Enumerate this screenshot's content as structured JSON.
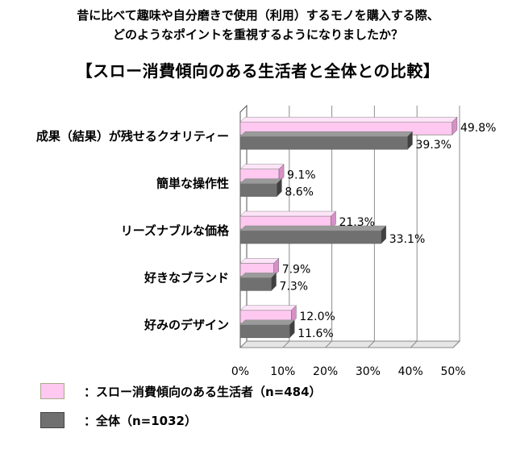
{
  "question": {
    "line1": "昔に比べて趣味や自分磨きで使用（利用）するモノを購入する際、",
    "line2": "どのようなポイントを重視するようになりましたか？"
  },
  "subtitle": "【スロー消費傾向のある生活者と全体との比較】",
  "colors": {
    "slow": "#ffc8f0",
    "slow_top": "#ffe4f8",
    "slow_side": "#d890c8",
    "all": "#707070",
    "all_top": "#9a9a9a",
    "all_side": "#404040"
  },
  "legend": [
    {
      "label": "：スロー消費傾向のある生活者（n=484）"
    },
    {
      "label": "：全体（n=1032）"
    }
  ],
  "chart_data": {
    "type": "bar",
    "orientation": "horizontal",
    "categories": [
      "成果（結果）が残せるクオリティー",
      "簡単な操作性",
      "リーズナブルな価格",
      "好きなブランド",
      "好みのデザイン"
    ],
    "series": [
      {
        "name": "スロー消費傾向のある生活者（n=484）",
        "values": [
          49.8,
          9.1,
          21.3,
          7.9,
          12.0
        ],
        "labels": [
          "49.8%",
          "9.1%",
          "21.3%",
          "7.9%",
          "12.0%"
        ]
      },
      {
        "name": "全体（n=1032）",
        "values": [
          39.3,
          8.6,
          33.1,
          7.3,
          11.6
        ],
        "labels": [
          "39.3%",
          "8.6%",
          "33.1%",
          "7.3%",
          "11.6%"
        ]
      }
    ],
    "xlim": [
      0,
      50
    ],
    "xticks": [
      "0%",
      "10%",
      "20%",
      "30%",
      "40%",
      "50%"
    ],
    "grid": true,
    "legend_position": "bottom-left"
  }
}
